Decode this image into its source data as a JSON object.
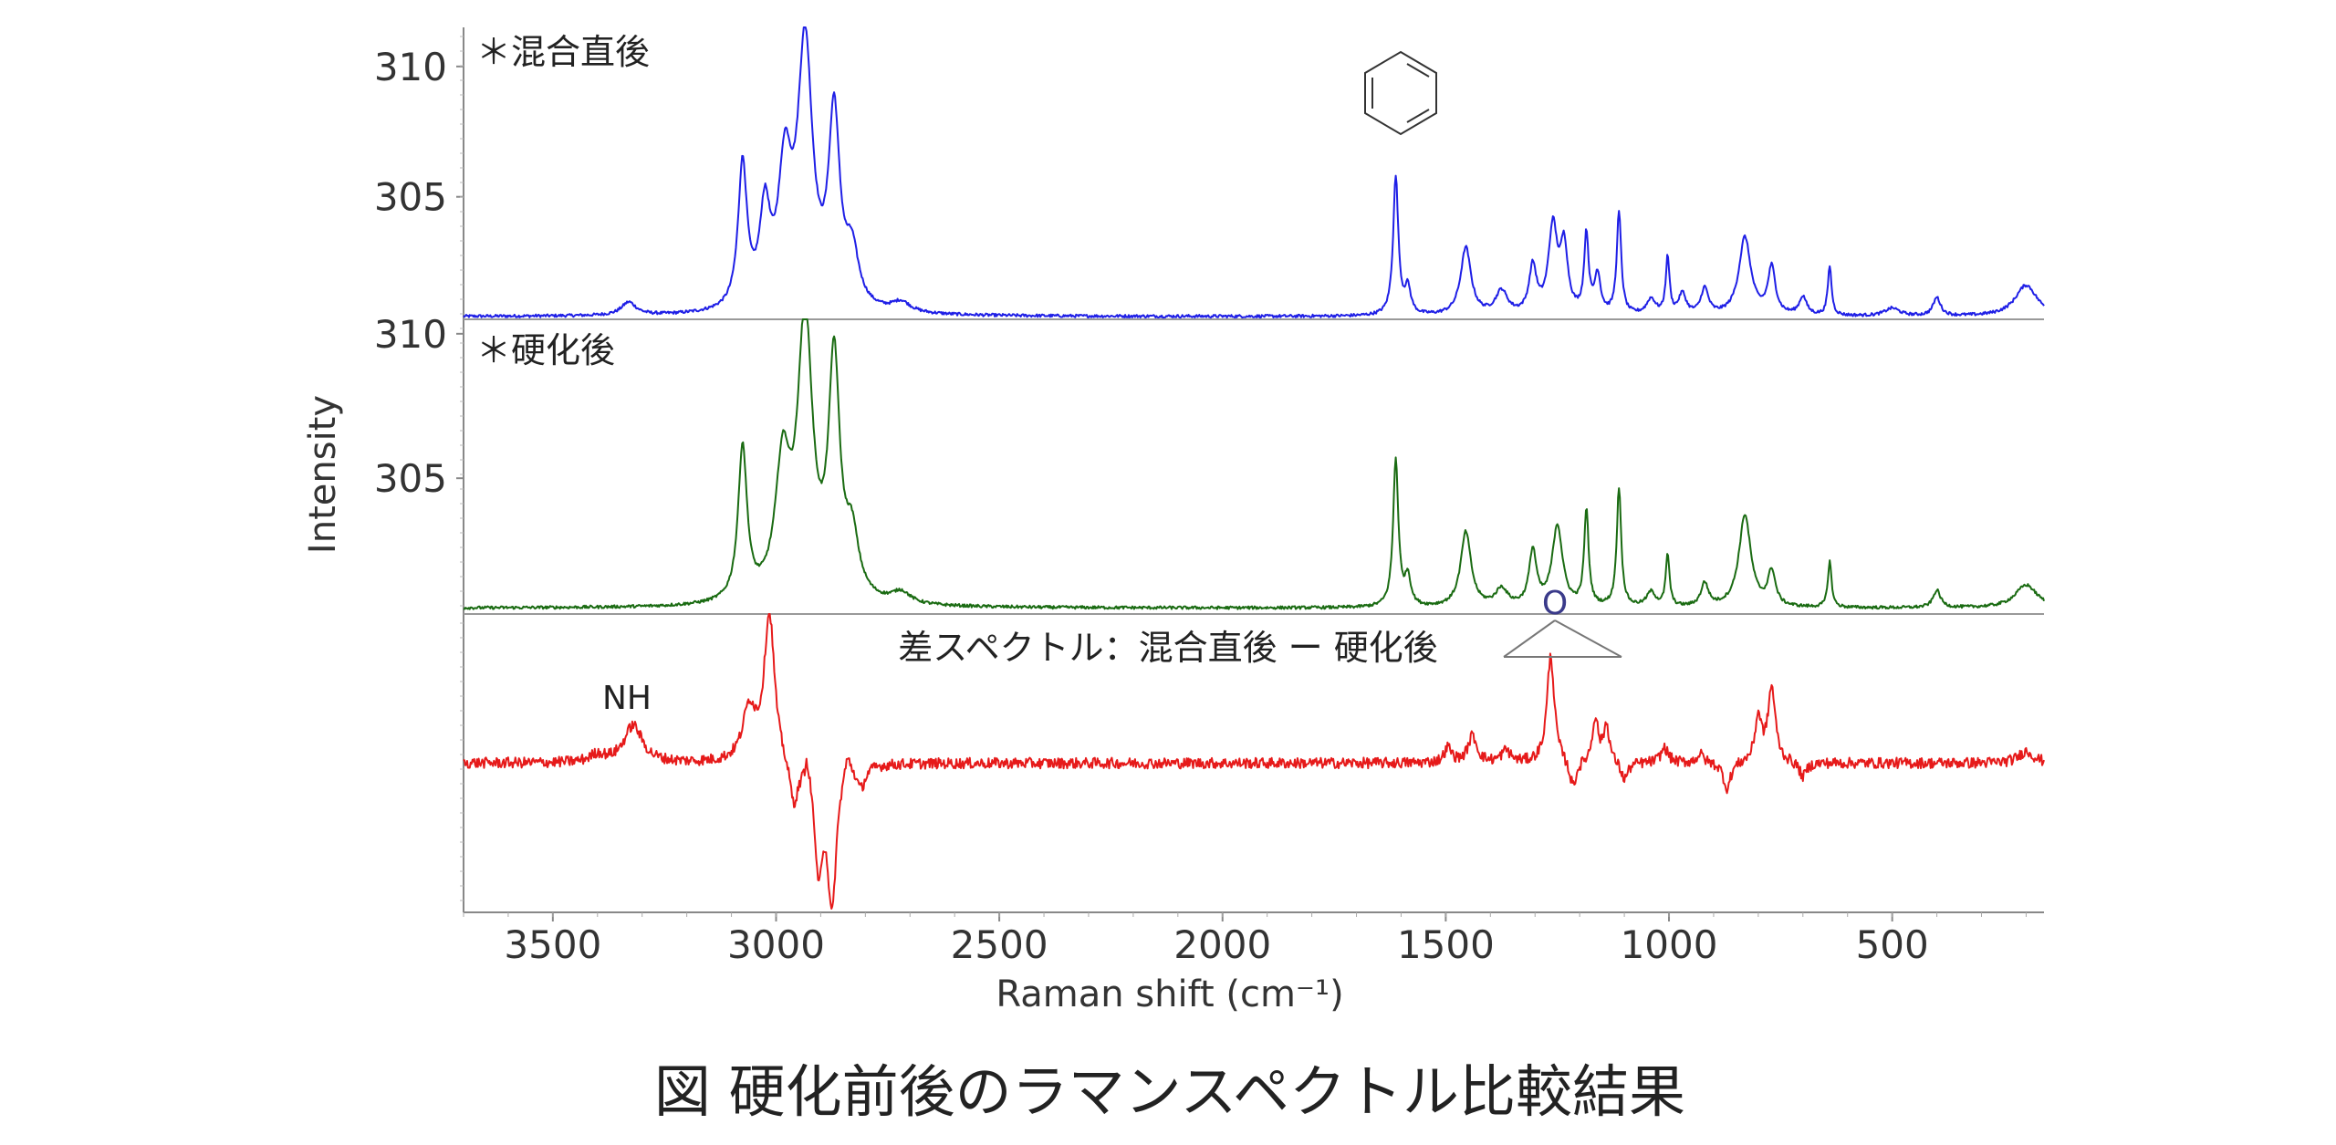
{
  "chart_data": {
    "type": "line",
    "title": "",
    "caption": "図  硬化前後のラマンスペクトル比較結果",
    "xlabel": "Raman shift  (cm⁻¹)",
    "ylabel": "Intensity",
    "xlim": [
      3700,
      160
    ],
    "x_ticks": [
      "3500",
      "3000",
      "2500",
      "2000",
      "1500",
      "1000",
      "500"
    ],
    "panels": [
      {
        "label": "＊混合直後",
        "color": "#1f1fe6",
        "ylim": [
          300.3,
          311.5
        ],
        "y_ticks": [
          "310",
          "305"
        ],
        "baseline": 300.4,
        "peaks": [
          {
            "x": 3330,
            "y": 0.5,
            "w": 20
          },
          {
            "x": 3075,
            "y": 5.5,
            "w": 12
          },
          {
            "x": 3025,
            "y": 3.5,
            "w": 14
          },
          {
            "x": 2980,
            "y": 5.0,
            "w": 18
          },
          {
            "x": 2935,
            "y": 10.0,
            "w": 20
          },
          {
            "x": 2870,
            "y": 7.2,
            "w": 15
          },
          {
            "x": 2830,
            "y": 2.0,
            "w": 18
          },
          {
            "x": 2720,
            "y": 0.4,
            "w": 25
          },
          {
            "x": 1612,
            "y": 5.3,
            "w": 7
          },
          {
            "x": 1585,
            "y": 1.0,
            "w": 8
          },
          {
            "x": 1455,
            "y": 2.6,
            "w": 14
          },
          {
            "x": 1375,
            "y": 0.9,
            "w": 16
          },
          {
            "x": 1305,
            "y": 1.8,
            "w": 10
          },
          {
            "x": 1260,
            "y": 3.3,
            "w": 12
          },
          {
            "x": 1235,
            "y": 2.5,
            "w": 10
          },
          {
            "x": 1185,
            "y": 3.0,
            "w": 6
          },
          {
            "x": 1160,
            "y": 1.5,
            "w": 8
          },
          {
            "x": 1112,
            "y": 3.9,
            "w": 6
          },
          {
            "x": 1040,
            "y": 0.6,
            "w": 12
          },
          {
            "x": 1003,
            "y": 2.2,
            "w": 5
          },
          {
            "x": 970,
            "y": 0.8,
            "w": 10
          },
          {
            "x": 920,
            "y": 1.0,
            "w": 10
          },
          {
            "x": 830,
            "y": 3.0,
            "w": 16
          },
          {
            "x": 770,
            "y": 1.8,
            "w": 10
          },
          {
            "x": 700,
            "y": 0.7,
            "w": 10
          },
          {
            "x": 640,
            "y": 1.9,
            "w": 5
          },
          {
            "x": 500,
            "y": 0.3,
            "w": 20
          },
          {
            "x": 400,
            "y": 0.7,
            "w": 10
          },
          {
            "x": 200,
            "y": 1.2,
            "w": 30
          }
        ]
      },
      {
        "label": "＊硬化後",
        "color": "#1a6b12",
        "ylim": [
          300.3,
          310.5
        ],
        "y_ticks": [
          "310",
          "305"
        ],
        "baseline": 300.5,
        "peaks": [
          {
            "x": 3075,
            "y": 5.3,
            "w": 12
          },
          {
            "x": 2985,
            "y": 4.5,
            "w": 20
          },
          {
            "x": 2935,
            "y": 9.6,
            "w": 20
          },
          {
            "x": 2870,
            "y": 8.1,
            "w": 15
          },
          {
            "x": 2830,
            "y": 2.0,
            "w": 18
          },
          {
            "x": 2720,
            "y": 0.4,
            "w": 25
          },
          {
            "x": 1612,
            "y": 5.1,
            "w": 7
          },
          {
            "x": 1585,
            "y": 1.0,
            "w": 8
          },
          {
            "x": 1455,
            "y": 2.6,
            "w": 14
          },
          {
            "x": 1375,
            "y": 0.6,
            "w": 16
          },
          {
            "x": 1305,
            "y": 1.9,
            "w": 10
          },
          {
            "x": 1250,
            "y": 2.8,
            "w": 14
          },
          {
            "x": 1185,
            "y": 3.3,
            "w": 6
          },
          {
            "x": 1112,
            "y": 4.1,
            "w": 6
          },
          {
            "x": 1040,
            "y": 0.5,
            "w": 12
          },
          {
            "x": 1003,
            "y": 1.8,
            "w": 5
          },
          {
            "x": 920,
            "y": 0.8,
            "w": 10
          },
          {
            "x": 830,
            "y": 3.2,
            "w": 16
          },
          {
            "x": 770,
            "y": 1.2,
            "w": 10
          },
          {
            "x": 640,
            "y": 1.6,
            "w": 5
          },
          {
            "x": 400,
            "y": 0.6,
            "w": 10
          },
          {
            "x": 200,
            "y": 0.8,
            "w": 30
          }
        ]
      },
      {
        "label": "差スペクトル：混合直後 ー 硬化後",
        "color": "#e61a1a",
        "ylim": [
          -1.0,
          1.0
        ],
        "y_ticks": [],
        "baseline": 0.0,
        "peaks": [
          {
            "x": 3400,
            "y": 0.05,
            "w": 20
          },
          {
            "x": 3320,
            "y": 0.25,
            "w": 25
          },
          {
            "x": 3060,
            "y": 0.35,
            "w": 18
          },
          {
            "x": 3015,
            "y": 1.0,
            "w": 14
          },
          {
            "x": 2960,
            "y": -0.3,
            "w": 12
          },
          {
            "x": 2930,
            "y": 0.15,
            "w": 6
          },
          {
            "x": 2905,
            "y": -0.7,
            "w": 10
          },
          {
            "x": 2875,
            "y": -0.95,
            "w": 12
          },
          {
            "x": 2840,
            "y": 0.15,
            "w": 10
          },
          {
            "x": 2810,
            "y": -0.15,
            "w": 12
          },
          {
            "x": 1495,
            "y": 0.1,
            "w": 10
          },
          {
            "x": 1440,
            "y": 0.18,
            "w": 12
          },
          {
            "x": 1365,
            "y": 0.08,
            "w": 12
          },
          {
            "x": 1265,
            "y": 0.72,
            "w": 10
          },
          {
            "x": 1215,
            "y": -0.18,
            "w": 10
          },
          {
            "x": 1165,
            "y": 0.3,
            "w": 8
          },
          {
            "x": 1140,
            "y": 0.25,
            "w": 8
          },
          {
            "x": 1100,
            "y": -0.12,
            "w": 10
          },
          {
            "x": 1010,
            "y": 0.1,
            "w": 10
          },
          {
            "x": 930,
            "y": 0.06,
            "w": 10
          },
          {
            "x": 870,
            "y": -0.18,
            "w": 10
          },
          {
            "x": 800,
            "y": 0.3,
            "w": 9
          },
          {
            "x": 770,
            "y": 0.5,
            "w": 10
          },
          {
            "x": 700,
            "y": -0.1,
            "w": 10
          },
          {
            "x": 200,
            "y": 0.08,
            "w": 20
          }
        ]
      }
    ],
    "annotations": [
      {
        "text": "NH",
        "panel": 2
      },
      {
        "text": "O",
        "panel": 1
      }
    ]
  }
}
